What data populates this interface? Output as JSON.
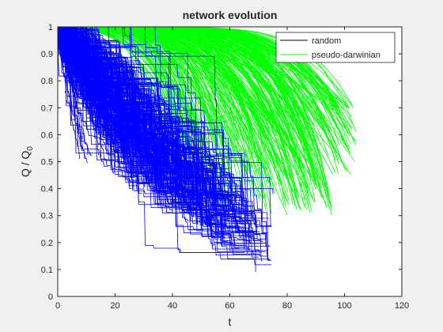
{
  "chart_data": {
    "type": "line",
    "title": "network evolution",
    "xlabel": "t",
    "ylabel": {
      "base": "Q / Q",
      "subscript": "0"
    },
    "xlim": [
      0,
      120
    ],
    "ylim": [
      0,
      1
    ],
    "x_ticks": [
      "0",
      "20",
      "40",
      "60",
      "80",
      "100",
      "120"
    ],
    "y_ticks": [
      "0",
      "0.1",
      "0.2",
      "0.3",
      "0.4",
      "0.5",
      "0.6",
      "0.7",
      "0.8",
      "0.9",
      "1"
    ],
    "legend_position": "top-right",
    "series": [
      {
        "name": "random",
        "color": "#0000ff",
        "legend_color": "#000000",
        "style": "step-decay",
        "count": 300,
        "end_t_range": [
          5,
          75
        ],
        "end_q_range": [
          0.08,
          0.65
        ],
        "examples": [
          {
            "x": [
              0,
              10,
              20,
              30,
              40,
              50,
              60,
              69
            ],
            "y": [
              1.0,
              0.62,
              0.5,
              0.42,
              0.35,
              0.27,
              0.17,
              0.09
            ]
          },
          {
            "x": [
              0,
              5,
              10,
              20,
              30,
              40,
              50,
              56
            ],
            "y": [
              1.0,
              0.78,
              0.62,
              0.48,
              0.37,
              0.31,
              0.25,
              0.21
            ]
          },
          {
            "x": [
              0,
              10,
              20,
              30,
              40,
              50,
              60,
              75
            ],
            "y": [
              1.0,
              0.8,
              0.66,
              0.57,
              0.5,
              0.45,
              0.4,
              0.38
            ]
          }
        ]
      },
      {
        "name": "pseudo-darwinian",
        "color": "#00ff00",
        "legend_color": "#00ff00",
        "style": "smooth-decay",
        "count": 300,
        "end_t_range": [
          40,
          104
        ],
        "end_q_range": [
          0.28,
          0.7
        ],
        "examples": [
          {
            "x": [
              0,
              40,
              60,
              70,
              80,
              90,
              100,
              104
            ],
            "y": [
              1.0,
              1.0,
              0.99,
              0.98,
              0.95,
              0.88,
              0.72,
              0.61
            ]
          },
          {
            "x": [
              0,
              20,
              40,
              60,
              70,
              80,
              85,
              88
            ],
            "y": [
              1.0,
              1.0,
              0.99,
              0.95,
              0.85,
              0.6,
              0.44,
              0.31
            ]
          },
          {
            "x": [
              0,
              20,
              30,
              40,
              50,
              55,
              57
            ],
            "y": [
              1.0,
              0.99,
              0.95,
              0.85,
              0.6,
              0.4,
              0.32
            ]
          }
        ]
      }
    ]
  }
}
